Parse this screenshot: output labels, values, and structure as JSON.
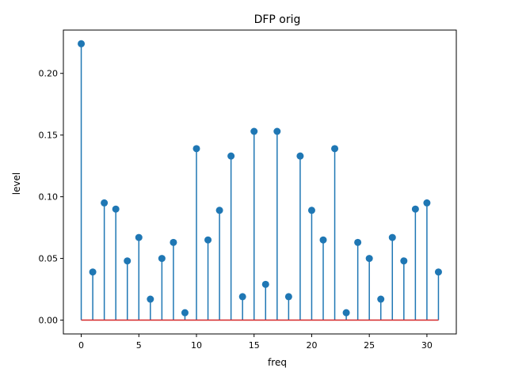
{
  "chart_data": {
    "type": "stem",
    "title": "DFP orig",
    "xlabel": "freq",
    "ylabel": "level",
    "xlim": [
      -1.55,
      32.55
    ],
    "ylim": [
      -0.0112,
      0.2351
    ],
    "xticks": [
      0,
      5,
      10,
      15,
      20,
      25,
      30
    ],
    "xtick_labels": [
      "0",
      "5",
      "10",
      "15",
      "20",
      "25",
      "30"
    ],
    "yticks": [
      0.0,
      0.05,
      0.1,
      0.15,
      0.2
    ],
    "ytick_labels": [
      "0.00",
      "0.05",
      "0.10",
      "0.15",
      "0.20"
    ],
    "grid": false,
    "x": [
      0,
      1,
      2,
      3,
      4,
      5,
      6,
      7,
      8,
      9,
      10,
      11,
      12,
      13,
      14,
      15,
      16,
      17,
      18,
      19,
      20,
      21,
      22,
      23,
      24,
      25,
      26,
      27,
      28,
      29,
      30,
      31
    ],
    "values": [
      0.224,
      0.039,
      0.095,
      0.09,
      0.048,
      0.067,
      0.017,
      0.05,
      0.063,
      0.006,
      0.139,
      0.065,
      0.089,
      0.133,
      0.019,
      0.153,
      0.029,
      0.153,
      0.019,
      0.133,
      0.089,
      0.065,
      0.139,
      0.006,
      0.063,
      0.05,
      0.017,
      0.067,
      0.048,
      0.09,
      0.095,
      0.039
    ],
    "colors": {
      "stem": "#1f77b4",
      "marker": "#1f77b4",
      "baseline": "#d62728",
      "axes": "#000000"
    }
  }
}
